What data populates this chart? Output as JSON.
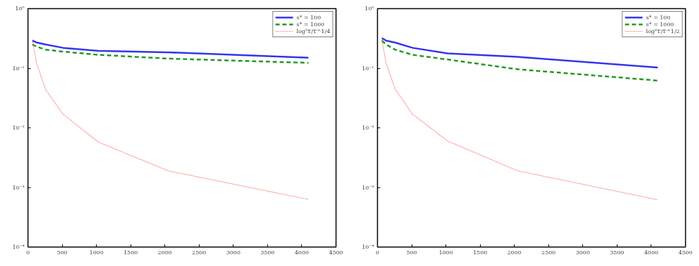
{
  "chart_data": [
    {
      "type": "line",
      "x": [
        64,
        128,
        256,
        512,
        1024,
        2048,
        4096
      ],
      "log": "y",
      "grid": false,
      "legend": "top right",
      "xlim": [
        0,
        4500
      ],
      "xticks": [
        0,
        500,
        1000,
        1500,
        2000,
        2500,
        3000,
        3500,
        4000,
        4500
      ],
      "ylim": [
        0.0001,
        1
      ],
      "yticks": [
        {
          "value": 0.0001,
          "label": "10⁻⁴"
        },
        {
          "value": 0.001,
          "label": "10⁻³"
        },
        {
          "value": 0.01,
          "label": "10⁻²"
        },
        {
          "value": 0.1,
          "label": "10⁻¹"
        },
        {
          "value": 1,
          "label": "10⁰"
        }
      ],
      "series": [
        {
          "name": "s* = 100",
          "color": "#3333ee",
          "line_style": "solid",
          "values": [
            0.29,
            0.27,
            0.25,
            0.22,
            0.196,
            0.185,
            0.15
          ]
        },
        {
          "name": "s* = 1000",
          "color": "#229922",
          "line_style": "dashed",
          "values": [
            0.25,
            0.23,
            0.205,
            0.19,
            0.168,
            0.145,
            0.123
          ]
        },
        {
          "name": "log²T/T^1/4",
          "color": "#ff6666",
          "line_style": "dotted",
          "values": [
            0.3,
            0.12,
            0.044,
            0.017,
            0.0058,
            0.0019,
            0.00063
          ]
        }
      ]
    },
    {
      "type": "line",
      "x": [
        64,
        128,
        256,
        512,
        1024,
        2048,
        4096
      ],
      "log": "y",
      "grid": false,
      "legend": "top right",
      "xlim": [
        0,
        4500
      ],
      "xticks": [
        0,
        500,
        1000,
        1500,
        2000,
        2500,
        3000,
        3500,
        4000,
        4500
      ],
      "ylim": [
        0.0001,
        1
      ],
      "yticks": [
        {
          "value": 0.0001,
          "label": "10⁻⁴"
        },
        {
          "value": 0.001,
          "label": "10⁻³"
        },
        {
          "value": 0.01,
          "label": "10⁻²"
        },
        {
          "value": 0.1,
          "label": "10⁻¹"
        },
        {
          "value": 1,
          "label": "10⁰"
        }
      ],
      "series": [
        {
          "name": "s* = 100",
          "color": "#3333ee",
          "line_style": "solid",
          "values": [
            0.32,
            0.29,
            0.27,
            0.22,
            0.177,
            0.155,
            0.103
          ]
        },
        {
          "name": "s* = 1000",
          "color": "#229922",
          "line_style": "dashed",
          "values": [
            0.29,
            0.25,
            0.205,
            0.168,
            0.14,
            0.096,
            0.062
          ]
        },
        {
          "name": "log²T/T^1/2",
          "color": "#ff6666",
          "line_style": "dotted",
          "values": [
            0.3,
            0.12,
            0.045,
            0.017,
            0.006,
            0.0019,
            0.00062
          ]
        }
      ]
    }
  ]
}
